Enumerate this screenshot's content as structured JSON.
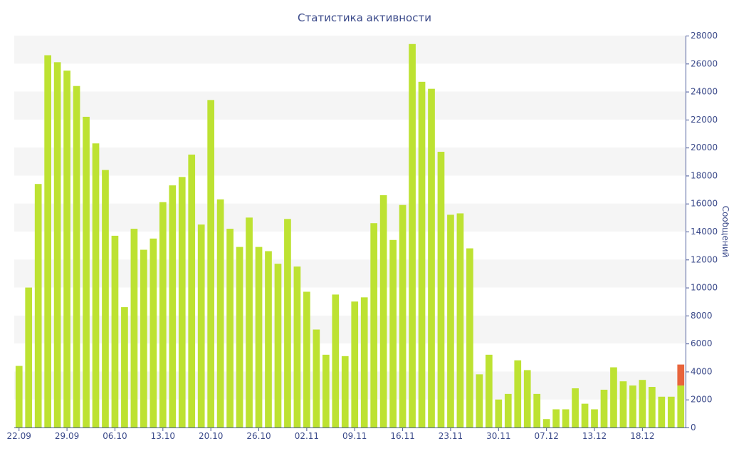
{
  "chart_data": {
    "type": "bar",
    "title": "Статистика активности",
    "xlabel": "",
    "ylabel": "Сообщений",
    "ylim": [
      0,
      28000
    ],
    "yticks": [
      0,
      2000,
      4000,
      6000,
      8000,
      10000,
      12000,
      14000,
      16000,
      18000,
      20000,
      22000,
      24000,
      26000,
      28000
    ],
    "y_axis_side": "right",
    "grid": "alternating horizontal bands",
    "legend": "none",
    "x_tick_labels": [
      {
        "index": 0,
        "label": "22.09"
      },
      {
        "index": 5,
        "label": "29.09"
      },
      {
        "index": 10,
        "label": "06.10"
      },
      {
        "index": 15,
        "label": "13.10"
      },
      {
        "index": 20,
        "label": "20.10"
      },
      {
        "index": 25,
        "label": "26.10"
      },
      {
        "index": 30,
        "label": "02.11"
      },
      {
        "index": 35,
        "label": "09.11"
      },
      {
        "index": 40,
        "label": "16.11"
      },
      {
        "index": 45,
        "label": "23.11"
      },
      {
        "index": 50,
        "label": "30.11"
      },
      {
        "index": 55,
        "label": "07.12"
      },
      {
        "index": 60,
        "label": "13.12"
      },
      {
        "index": 65,
        "label": "18.12"
      }
    ],
    "bar_color": "#bde232",
    "highlight_color": "#e8643c",
    "values": [
      4400,
      10000,
      17400,
      26600,
      26100,
      25500,
      24400,
      22200,
      20300,
      18400,
      13700,
      8600,
      14200,
      12700,
      13500,
      16100,
      17300,
      17900,
      19500,
      14500,
      23400,
      16300,
      14200,
      12900,
      15000,
      12900,
      12600,
      11700,
      14900,
      11500,
      9700,
      7000,
      5200,
      9500,
      5100,
      9000,
      9300,
      14600,
      16600,
      13400,
      15900,
      27400,
      24700,
      24200,
      19700,
      15200,
      15300,
      12800,
      3800,
      5200,
      2000,
      2400,
      4800,
      4100,
      2400,
      600,
      1300,
      1300,
      2800,
      1700,
      1300,
      2700,
      4300,
      3300,
      3000,
      3400,
      2900,
      2200,
      2200,
      3000
    ],
    "highlight_last": {
      "base": 3000,
      "extra": 1500
    }
  }
}
